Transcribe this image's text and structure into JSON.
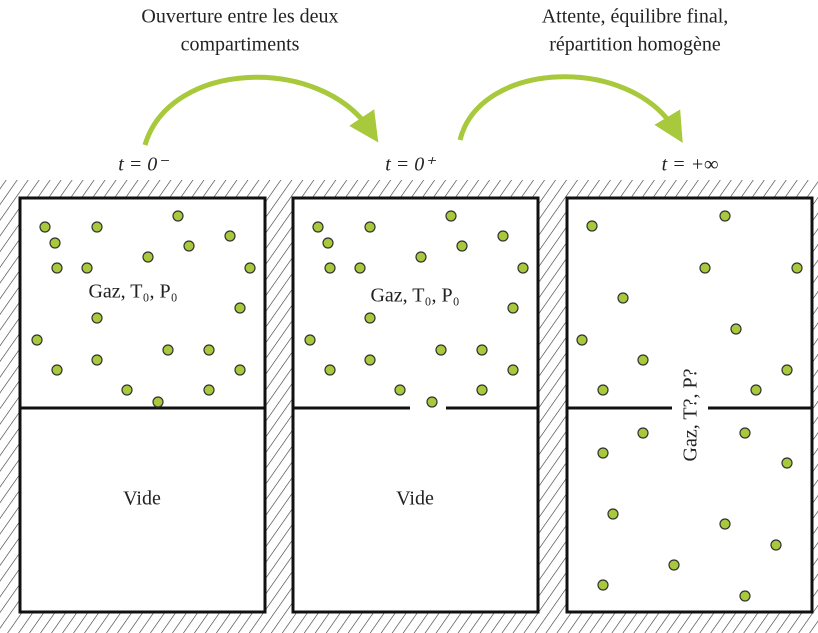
{
  "steps": [
    {
      "caption": [
        "Ouverture entre les deux",
        "compartiments"
      ]
    },
    {
      "caption": [
        "Attente, équilibre final,",
        "répartition homogène"
      ]
    }
  ],
  "states": [
    {
      "time": "t = 0⁻",
      "upper": "Gaz, T₀, P₀",
      "lower": "Vide"
    },
    {
      "time": "t = 0⁺",
      "upper": "Gaz, T₀, P₀",
      "lower": "Vide"
    },
    {
      "time": "t = +∞",
      "label": "Gaz, T?, P?"
    }
  ]
}
